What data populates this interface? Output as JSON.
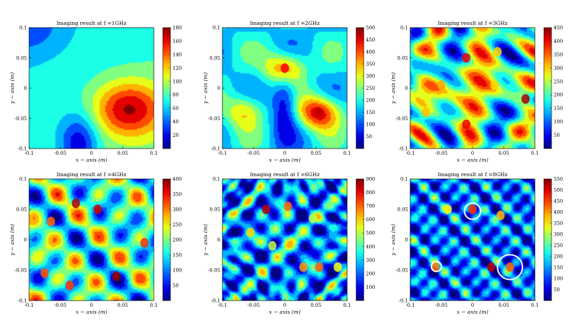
{
  "figure": {
    "xlabel": "x − axis (m)",
    "ylabel": "y − axis (m)"
  },
  "chart_data": [
    {
      "type": "heatmap",
      "title": "Imaging result at f =1GHz",
      "xlabel": "x − axis (m)",
      "ylabel": "y − axis (m)",
      "xlim": [
        -0.1,
        0.1
      ],
      "ylim": [
        -0.1,
        0.1
      ],
      "x_ticks": [
        "-0.1",
        "-0.05",
        "0",
        "0.05",
        "0.1"
      ],
      "y_ticks": [
        "-0.1",
        "-0.05",
        "0",
        "0.05",
        "0.1"
      ],
      "colorbar": {
        "min": 0,
        "max": 180,
        "ticks": [
          20,
          40,
          60,
          80,
          100,
          120,
          140,
          160,
          180
        ]
      },
      "peaks": [
        {
          "x": 0.06,
          "y": -0.035,
          "value": 180
        }
      ],
      "circles": []
    },
    {
      "type": "heatmap",
      "title": "Imaging result at f =2GHz",
      "xlabel": "x − axis (m)",
      "ylabel": "y − axis (m)",
      "xlim": [
        -0.1,
        0.1
      ],
      "ylim": [
        -0.1,
        0.1
      ],
      "x_ticks": [
        "-0.1",
        "-0.05",
        "0",
        "0.05",
        "0.1"
      ],
      "y_ticks": [
        "-0.1",
        "-0.05",
        "0",
        "0.05",
        "0.1"
      ],
      "colorbar": {
        "min": 0,
        "max": 500,
        "ticks": [
          50,
          100,
          150,
          200,
          250,
          300,
          350,
          400,
          450,
          500
        ]
      },
      "peaks": [
        {
          "x": 0.0,
          "y": 0.033,
          "value": 440
        },
        {
          "x": 0.055,
          "y": -0.04,
          "value": 470
        },
        {
          "x": -0.065,
          "y": -0.038,
          "value": 300
        }
      ],
      "circles": []
    },
    {
      "type": "heatmap",
      "title": "Imaging result at f =3GHz",
      "xlabel": "x − axis (m)",
      "ylabel": "y − axis (m)",
      "xlim": [
        -0.1,
        0.1
      ],
      "ylim": [
        -0.1,
        0.1
      ],
      "x_ticks": [
        "-0.1",
        "-0.05",
        "0",
        "0.05",
        "0.1"
      ],
      "y_ticks": [
        "-0.1",
        "-0.05",
        "0",
        "0.05",
        "0.1"
      ],
      "colorbar": {
        "min": 0,
        "max": 450,
        "ticks": [
          50,
          100,
          150,
          200,
          250,
          300,
          350,
          400,
          450
        ]
      },
      "peaks": [
        {
          "x": -0.01,
          "y": 0.05,
          "value": 400
        },
        {
          "x": -0.01,
          "y": -0.06,
          "value": 400
        },
        {
          "x": 0.085,
          "y": -0.018,
          "value": 430
        },
        {
          "x": -0.05,
          "y": 0.005,
          "value": 320
        },
        {
          "x": 0.04,
          "y": 0.06,
          "value": 300
        },
        {
          "x": -0.075,
          "y": -0.04,
          "value": 310
        },
        {
          "x": 0.035,
          "y": 0.005,
          "value": 300
        }
      ],
      "circles": []
    },
    {
      "type": "heatmap",
      "title": "Imaging result at f =4GHz",
      "xlabel": "x − axis (m)",
      "ylabel": "y − axis (m)",
      "xlim": [
        -0.1,
        0.1
      ],
      "ylim": [
        -0.1,
        0.1
      ],
      "x_ticks": [
        "-0.1",
        "-0.05",
        "0",
        "0.05",
        "0.1"
      ],
      "y_ticks": [
        "-0.1",
        "-0.05",
        "0",
        "0.05",
        "0.1"
      ],
      "colorbar": {
        "min": 0,
        "max": 400,
        "ticks": [
          50,
          100,
          150,
          200,
          250,
          300,
          350,
          400
        ]
      },
      "peaks": [
        {
          "x": -0.025,
          "y": 0.06,
          "value": 380
        },
        {
          "x": 0.01,
          "y": 0.05,
          "value": 370
        },
        {
          "x": 0.04,
          "y": -0.06,
          "value": 390
        },
        {
          "x": -0.065,
          "y": 0.03,
          "value": 310
        },
        {
          "x": -0.075,
          "y": -0.055,
          "value": 320
        },
        {
          "x": -0.035,
          "y": -0.075,
          "value": 330
        },
        {
          "x": 0.085,
          "y": -0.005,
          "value": 330
        }
      ],
      "circles": []
    },
    {
      "type": "heatmap",
      "title": "Imaging result at f =6GHz",
      "xlabel": "x − axis (m)",
      "ylabel": "y − axis (m)",
      "xlim": [
        -0.1,
        0.1
      ],
      "ylim": [
        -0.1,
        0.1
      ],
      "x_ticks": [
        "-0.1",
        "-0.05",
        "0",
        "0.05",
        "0.1"
      ],
      "y_ticks": [
        "-0.1",
        "-0.05",
        "0",
        "0.05",
        "0.1"
      ],
      "colorbar": {
        "min": 0,
        "max": 900,
        "ticks": [
          100,
          200,
          300,
          400,
          500,
          600,
          700,
          800,
          900
        ]
      },
      "peaks": [
        {
          "x": -0.03,
          "y": 0.05,
          "value": 850
        },
        {
          "x": 0.005,
          "y": 0.055,
          "value": 700
        },
        {
          "x": 0.055,
          "y": -0.045,
          "value": 700
        },
        {
          "x": 0.03,
          "y": -0.045,
          "value": 650
        },
        {
          "x": -0.055,
          "y": 0.012,
          "value": 600
        },
        {
          "x": 0.045,
          "y": 0.035,
          "value": 500
        },
        {
          "x": -0.02,
          "y": -0.01,
          "value": 500
        },
        {
          "x": 0.085,
          "y": -0.045,
          "value": 550
        }
      ],
      "circles": []
    },
    {
      "type": "heatmap",
      "title": "Imaging result at f =8GHz",
      "xlabel": "x − axis (m)",
      "ylabel": "y − axis (m)",
      "xlim": [
        -0.1,
        0.1
      ],
      "ylim": [
        -0.1,
        0.1
      ],
      "x_ticks": [
        "-0.1",
        "-0.05",
        "0",
        "0.05",
        "0.1"
      ],
      "y_ticks": [
        "-0.1",
        "-0.05",
        "0",
        "0.05",
        "0.1"
      ],
      "colorbar": {
        "min": 0,
        "max": 550,
        "ticks": [
          50,
          100,
          150,
          200,
          250,
          300,
          350,
          400,
          450,
          500,
          550
        ]
      },
      "peaks": [
        {
          "x": 0.03,
          "y": -0.045,
          "value": 520
        },
        {
          "x": 0.0,
          "y": 0.05,
          "value": 450
        },
        {
          "x": -0.06,
          "y": -0.045,
          "value": 420
        },
        {
          "x": 0.06,
          "y": -0.045,
          "value": 430
        },
        {
          "x": 0.045,
          "y": 0.04,
          "value": 380
        },
        {
          "x": -0.04,
          "y": 0.05,
          "value": 350
        }
      ],
      "circles": [
        {
          "cx": 0.0,
          "cy": 0.047,
          "r": 0.013
        },
        {
          "cx": -0.058,
          "cy": -0.044,
          "r": 0.008
        },
        {
          "cx": 0.06,
          "cy": -0.045,
          "r": 0.02
        }
      ]
    }
  ]
}
